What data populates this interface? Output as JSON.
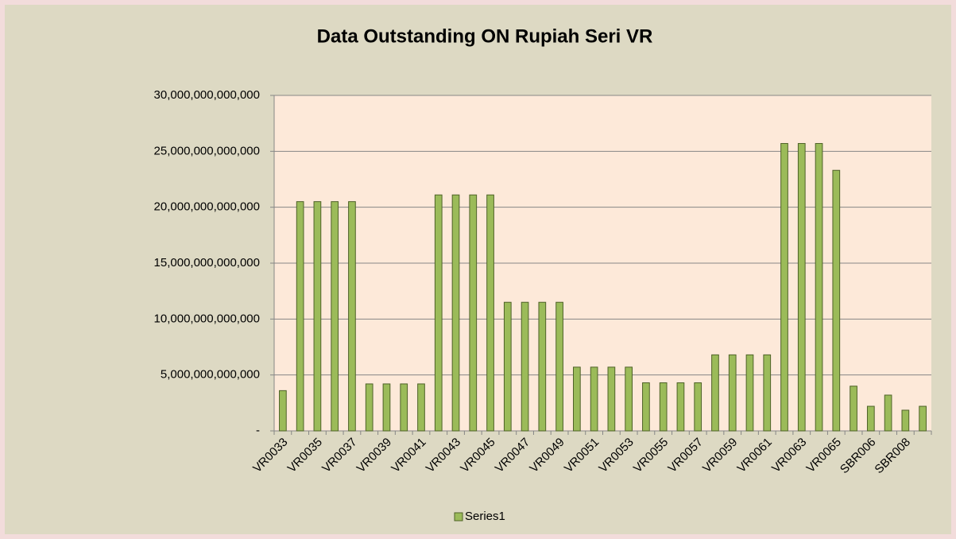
{
  "chart_data": {
    "type": "bar",
    "title": "Data Outstanding ON Rupiah Seri VR",
    "categories": [
      "VR0033",
      null,
      "VR0035",
      null,
      "VR0037",
      null,
      "VR0039",
      null,
      "VR0041",
      null,
      "VR0043",
      null,
      "VR0045",
      null,
      "VR0047",
      null,
      "VR0049",
      null,
      "VR0051",
      null,
      "VR0053",
      null,
      "VR0055",
      null,
      "VR0057",
      null,
      "VR0059",
      null,
      "VR0061",
      null,
      "VR0063",
      null,
      "VR0065",
      null,
      "SBR006",
      null,
      "SBR008",
      null
    ],
    "series": [
      {
        "name": "Series1",
        "color": "#9bbb59",
        "values": [
          3600000000000,
          20500000000000,
          20500000000000,
          20500000000000,
          20500000000000,
          4200000000000,
          4200000000000,
          4200000000000,
          4200000000000,
          21100000000000,
          21100000000000,
          21100000000000,
          21100000000000,
          11500000000000,
          11500000000000,
          11500000000000,
          11500000000000,
          5700000000000,
          5700000000000,
          5700000000000,
          5700000000000,
          4300000000000,
          4300000000000,
          4300000000000,
          4300000000000,
          6800000000000,
          6800000000000,
          6800000000000,
          6800000000000,
          25700000000000,
          25700000000000,
          25700000000000,
          23300000000000,
          4000000000000,
          2200000000000,
          3200000000000,
          1850000000000,
          2200000000000
        ]
      }
    ],
    "ylim": [
      0,
      30000000000000
    ],
    "yticks": [
      {
        "value": 0,
        "label": "-"
      },
      {
        "value": 5000000000000,
        "label": "5,000,000,000,000"
      },
      {
        "value": 10000000000000,
        "label": "10,000,000,000,000"
      },
      {
        "value": 15000000000000,
        "label": "15,000,000,000,000"
      },
      {
        "value": 20000000000000,
        "label": "20,000,000,000,000"
      },
      {
        "value": 25000000000000,
        "label": "25,000,000,000,000"
      },
      {
        "value": 30000000000000,
        "label": "30,000,000,000,000"
      }
    ],
    "grid": true,
    "legend": "bottom"
  }
}
